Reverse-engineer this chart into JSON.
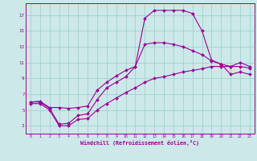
{
  "xlabel": "Windchill (Refroidissement éolien,°C)",
  "background_color": "#cce8e8",
  "grid_color": "#99cccc",
  "line_color": "#990099",
  "xlim": [
    -0.5,
    23.5
  ],
  "ylim": [
    2.0,
    18.5
  ],
  "xticks": [
    0,
    1,
    2,
    3,
    4,
    5,
    6,
    7,
    8,
    9,
    10,
    11,
    12,
    13,
    14,
    15,
    16,
    17,
    18,
    19,
    20,
    21,
    22,
    23
  ],
  "yticks": [
    3,
    5,
    7,
    9,
    11,
    13,
    15,
    17
  ],
  "curve1_x": [
    0,
    1,
    2,
    3,
    4,
    5,
    6,
    7,
    8,
    9,
    10,
    11,
    12,
    13,
    14,
    15,
    16,
    17,
    18,
    19,
    20,
    21,
    22,
    23
  ],
  "curve1_y": [
    6.0,
    6.1,
    5.3,
    5.3,
    5.2,
    5.3,
    5.5,
    7.5,
    8.5,
    9.3,
    10.0,
    10.5,
    16.6,
    17.6,
    17.6,
    17.6,
    17.6,
    17.2,
    15.0,
    11.3,
    10.8,
    10.5,
    11.0,
    10.5
  ],
  "curve2_x": [
    0,
    1,
    2,
    3,
    4,
    5,
    6,
    7,
    8,
    9,
    10,
    11,
    12,
    13,
    14,
    15,
    16,
    17,
    18,
    19,
    20,
    21,
    22,
    23
  ],
  "curve2_y": [
    6.0,
    6.0,
    5.2,
    3.2,
    3.3,
    4.3,
    4.5,
    6.3,
    7.8,
    8.5,
    9.2,
    10.5,
    13.3,
    13.5,
    13.5,
    13.3,
    13.0,
    12.5,
    12.0,
    11.2,
    10.8,
    9.5,
    9.8,
    9.5
  ],
  "curve3_x": [
    0,
    1,
    2,
    3,
    4,
    5,
    6,
    7,
    8,
    9,
    10,
    11,
    12,
    13,
    14,
    15,
    16,
    17,
    18,
    19,
    20,
    21,
    22,
    23
  ],
  "curve3_y": [
    5.8,
    5.8,
    5.0,
    3.0,
    3.0,
    3.8,
    3.9,
    5.0,
    5.8,
    6.5,
    7.2,
    7.8,
    8.5,
    9.0,
    9.2,
    9.5,
    9.8,
    10.0,
    10.2,
    10.5,
    10.5,
    10.5,
    10.5,
    10.3
  ]
}
